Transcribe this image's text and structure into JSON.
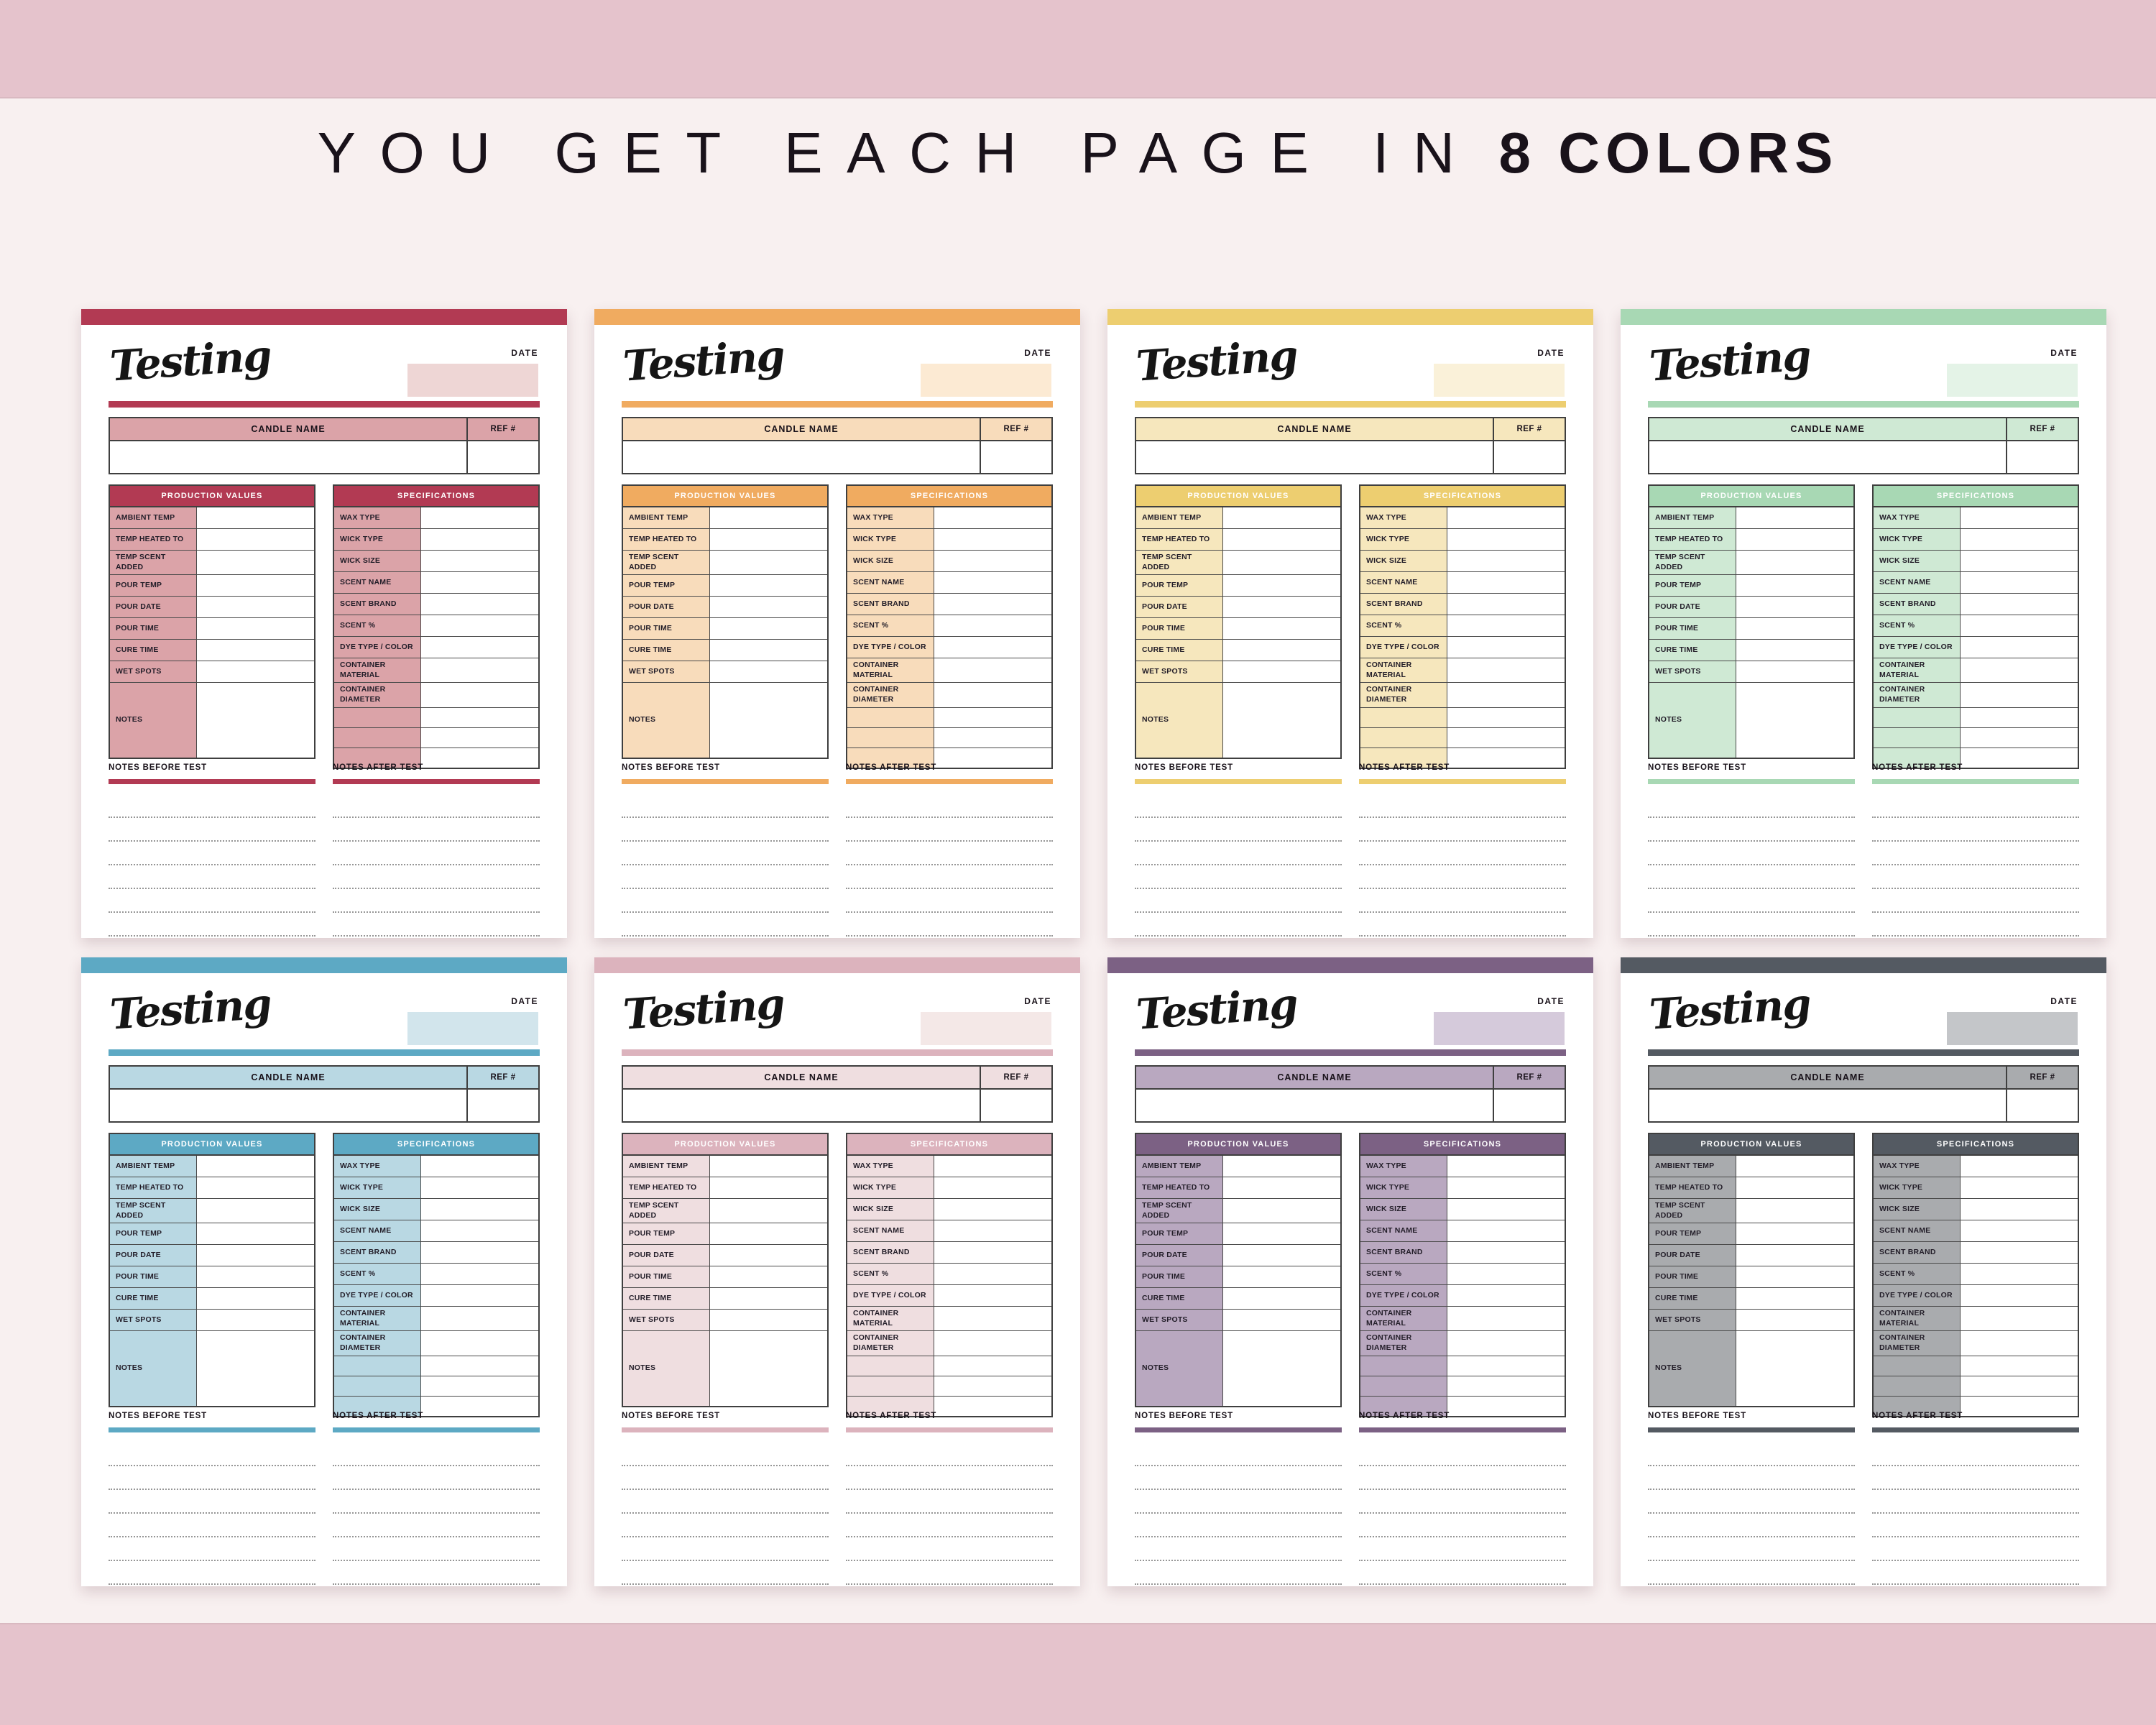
{
  "heading": {
    "prefix": "YOU GET EACH PAGE IN",
    "emphasis": "8 COLORS"
  },
  "page": {
    "logo_text": "Testing",
    "date_label": "DATE",
    "candle_name_label": "CANDLE NAME",
    "ref_label": "REF #",
    "production": {
      "title": "PRODUCTION VALUES",
      "rows": [
        "AMBIENT TEMP",
        "TEMP HEATED TO",
        "TEMP SCENT ADDED",
        "POUR TEMP",
        "POUR DATE",
        "POUR TIME",
        "CURE TIME",
        "WET SPOTS",
        "NOTES"
      ]
    },
    "specifications": {
      "title": "SPECIFICATIONS",
      "rows": [
        "WAX TYPE",
        "WICK TYPE",
        "WICK SIZE",
        "SCENT NAME",
        "SCENT BRAND",
        "SCENT %",
        "DYE TYPE / COLOR",
        "CONTAINER MATERIAL",
        "CONTAINER DIAMETER",
        "",
        "",
        ""
      ]
    },
    "notes_before_label": "NOTES BEFORE TEST",
    "notes_after_label": "NOTES AFTER TEST",
    "note_line_count": 6
  },
  "themes": [
    {
      "name": "crimson",
      "bar": "#b23a53",
      "tint": "#dba3a8",
      "pale": "#eed6d5"
    },
    {
      "name": "orange",
      "bar": "#f0ab60",
      "tint": "#f8dcbb",
      "pale": "#fcead3"
    },
    {
      "name": "yellow",
      "bar": "#edce70",
      "tint": "#f6e7bd",
      "pale": "#faf1d9"
    },
    {
      "name": "green",
      "bar": "#a8d8b4",
      "tint": "#cfe9d4",
      "pale": "#e4f3e7"
    },
    {
      "name": "blue",
      "bar": "#5da9c4",
      "tint": "#b9d8e3",
      "pale": "#d2e5ec"
    },
    {
      "name": "pink",
      "bar": "#dcb3bd",
      "tint": "#efdee0",
      "pale": "#f4e8e7"
    },
    {
      "name": "purple",
      "bar": "#7c6184",
      "tint": "#b9a8c0",
      "pale": "#d5cadb"
    },
    {
      "name": "slate",
      "bar": "#545a62",
      "tint": "#a9abae",
      "pale": "#c4c6c9"
    }
  ],
  "colors": {
    "band": "#e5c3cc",
    "background": "#f8f0f0",
    "text": "#19121a"
  }
}
